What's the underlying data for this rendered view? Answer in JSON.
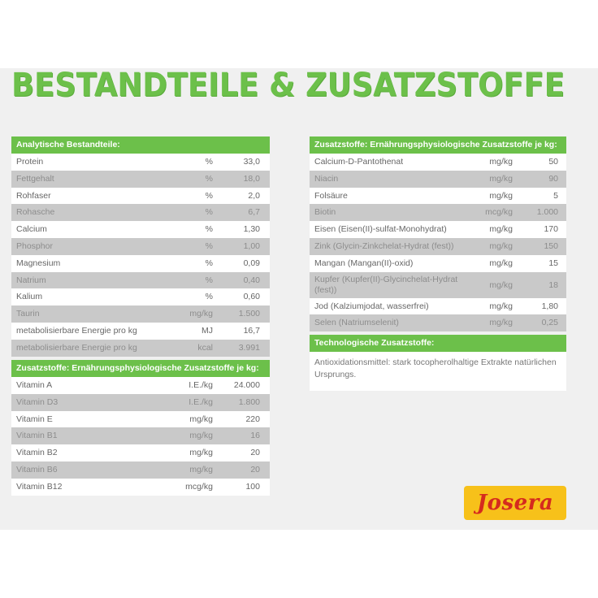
{
  "title": "BESTANDTEILE & ZUSATZSTOFFE",
  "analytic": {
    "header": "Analytische Bestandteile:",
    "rows": [
      {
        "name": "Protein",
        "unit": "%",
        "value": "33,0"
      },
      {
        "name": "Fettgehalt",
        "unit": "%",
        "value": "18,0"
      },
      {
        "name": "Rohfaser",
        "unit": "%",
        "value": "2,0"
      },
      {
        "name": "Rohasche",
        "unit": "%",
        "value": "6,7"
      },
      {
        "name": "Calcium",
        "unit": "%",
        "value": "1,30"
      },
      {
        "name": "Phosphor",
        "unit": "%",
        "value": "1,00"
      },
      {
        "name": "Magnesium",
        "unit": "%",
        "value": "0,09"
      },
      {
        "name": "Natrium",
        "unit": "%",
        "value": "0,40"
      },
      {
        "name": "Kalium",
        "unit": "%",
        "value": "0,60"
      },
      {
        "name": "Taurin",
        "unit": "mg/kg",
        "value": "1.500"
      },
      {
        "name": "metabolisierbare Energie pro kg",
        "unit": "MJ",
        "value": "16,7"
      },
      {
        "name": "metabolisierbare Energie pro kg",
        "unit": "kcal",
        "value": "3.991"
      }
    ]
  },
  "vitamins": {
    "header": "Zusatzstoffe: Ernährungsphysiologische Zusatzstoffe je kg:",
    "rows": [
      {
        "name": "Vitamin A",
        "unit": "I.E./kg",
        "value": "24.000"
      },
      {
        "name": "Vitamin D3",
        "unit": "I.E./kg",
        "value": "1.800"
      },
      {
        "name": "Vitamin E",
        "unit": "mg/kg",
        "value": "220"
      },
      {
        "name": "Vitamin B1",
        "unit": "mg/kg",
        "value": "16"
      },
      {
        "name": "Vitamin B2",
        "unit": "mg/kg",
        "value": "20"
      },
      {
        "name": "Vitamin B6",
        "unit": "mg/kg",
        "value": "20"
      },
      {
        "name": "Vitamin B12",
        "unit": "mcg/kg",
        "value": "100"
      }
    ]
  },
  "additives": {
    "header": "Zusatzstoffe: Ernährungsphysiologische Zusatzstoffe je kg:",
    "rows": [
      {
        "name": "Calcium-D-Pantothenat",
        "unit": "mg/kg",
        "value": "50"
      },
      {
        "name": "Niacin",
        "unit": "mg/kg",
        "value": "90"
      },
      {
        "name": "Folsäure",
        "unit": "mg/kg",
        "value": "5"
      },
      {
        "name": "Biotin",
        "unit": "mcg/kg",
        "value": "1.000"
      },
      {
        "name": "Eisen (Eisen(II)-sulfat-Monohydrat)",
        "unit": "mg/kg",
        "value": "170"
      },
      {
        "name": "Zink (Glycin-Zinkchelat-Hydrat (fest))",
        "unit": "mg/kg",
        "value": "150"
      },
      {
        "name": "Mangan (Mangan(II)-oxid)",
        "unit": "mg/kg",
        "value": "15"
      },
      {
        "name": "Kupfer (Kupfer(II)-Glycinchelat-Hydrat (fest))",
        "unit": "mg/kg",
        "value": "18"
      },
      {
        "name": "Jod (Kalziumjodat, wasserfrei)",
        "unit": "mg/kg",
        "value": "1,80"
      },
      {
        "name": "Selen (Natriumselenit)",
        "unit": "mg/kg",
        "value": "0,25"
      }
    ]
  },
  "tech": {
    "header": "Technologische Zusatzstoffe:",
    "text": "Antioxidationsmittel: stark tocopherolhaltige Extrakte natürlichen Ursprungs."
  },
  "logo": {
    "text": "Josera"
  },
  "colors": {
    "accent": "#6cc04a",
    "logo_bg": "#f7c11a",
    "logo_text": "#d52b1e"
  }
}
